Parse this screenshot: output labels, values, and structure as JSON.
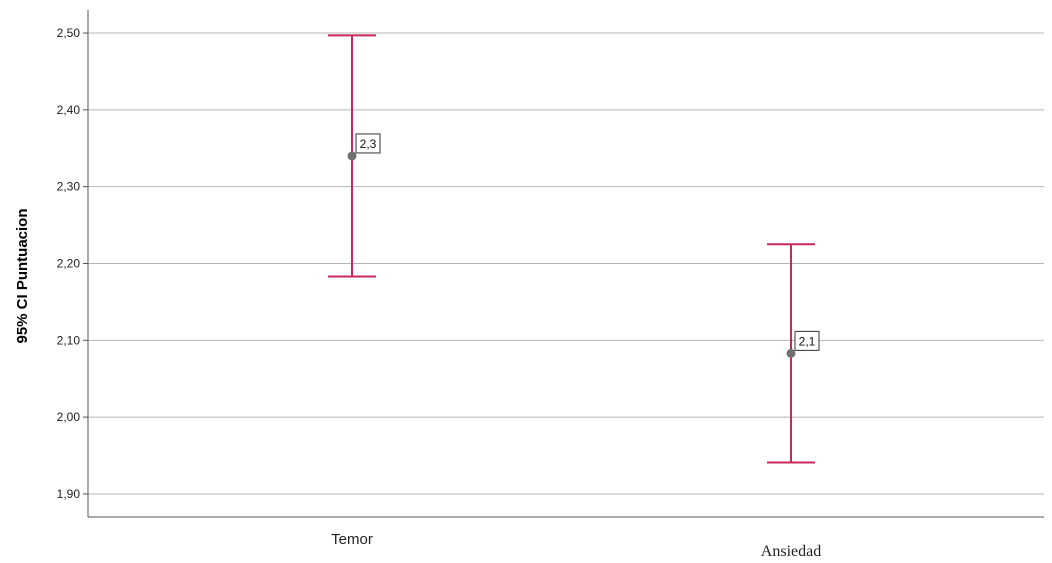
{
  "chart_data": {
    "type": "errorbar",
    "ylabel": "95% CI Puntuacion",
    "xlabel": "",
    "ylim": [
      1.87,
      2.53
    ],
    "yticks": [
      "1,90",
      "2,00",
      "2,10",
      "2,20",
      "2,30",
      "2,40",
      "2,50"
    ],
    "ytick_values": [
      1.9,
      2.0,
      2.1,
      2.2,
      2.3,
      2.4,
      2.5
    ],
    "grid": true,
    "categories": [
      "Temor",
      "Ansiedad"
    ],
    "points": [
      {
        "category": "Temor",
        "mean": 2.34,
        "lower": 2.183,
        "upper": 2.497,
        "label": "2,3"
      },
      {
        "category": "Ansiedad",
        "mean": 2.083,
        "lower": 1.941,
        "upper": 2.225,
        "label": "2,1"
      }
    ],
    "colors": {
      "errorbar": "#c8285a",
      "marker": "#707070",
      "grid": "#b4b4b4",
      "axis": "#555555"
    }
  }
}
